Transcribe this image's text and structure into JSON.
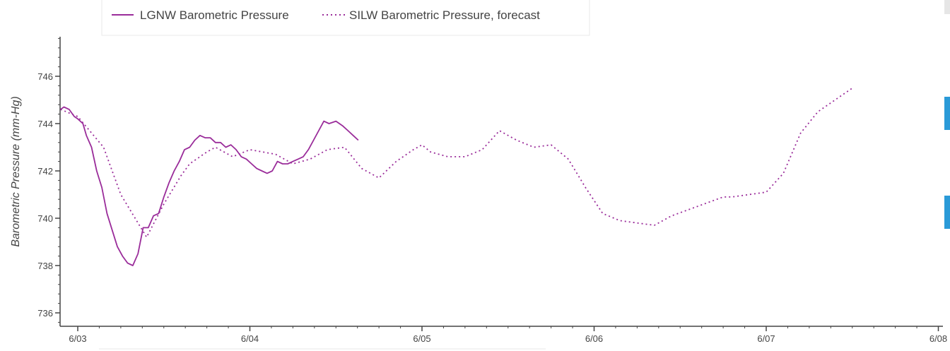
{
  "chart_data": {
    "type": "line",
    "ylabel": "Barometric Pressure (mm-Hg)",
    "ylim": [
      735.6,
      747.8
    ],
    "xlim": [
      -0.1,
      5.02
    ],
    "x_tick_labels": [
      "6/03",
      "6/04",
      "6/05",
      "6/06",
      "6/07",
      "6/08"
    ],
    "x_tick_values": [
      0,
      1,
      2,
      3,
      4,
      5
    ],
    "y_ticks": [
      736,
      738,
      740,
      742,
      744,
      746
    ],
    "legend": {
      "placement": "top-left",
      "orientation": "horizontal"
    },
    "grid": false,
    "series": [
      {
        "name": "LGNW Barometric Pressure",
        "style": "solid",
        "color": "#9a2c9a",
        "x": [
          -0.1,
          -0.08,
          -0.05,
          -0.02,
          0.0,
          0.03,
          0.05,
          0.08,
          0.11,
          0.14,
          0.17,
          0.2,
          0.23,
          0.26,
          0.29,
          0.32,
          0.35,
          0.38,
          0.41,
          0.44,
          0.47,
          0.5,
          0.53,
          0.56,
          0.59,
          0.62,
          0.65,
          0.68,
          0.71,
          0.74,
          0.77,
          0.8,
          0.83,
          0.86,
          0.89,
          0.92,
          0.95,
          0.98,
          1.01,
          1.04,
          1.07,
          1.1,
          1.13,
          1.16,
          1.19,
          1.22,
          1.25,
          1.28,
          1.31,
          1.34,
          1.37,
          1.4,
          1.43,
          1.46,
          1.5,
          1.54,
          1.57,
          1.6,
          1.63,
          1.66,
          1.69,
          1.72,
          1.75,
          1.78,
          1.81,
          1.84,
          1.87,
          1.9,
          1.93,
          1.96,
          1.98,
          2.02,
          2.06,
          2.1,
          2.15,
          2.2,
          2.25
        ],
        "y": [
          744.6,
          744.7,
          744.6,
          744.3,
          744.2,
          744.0,
          743.5,
          743.0,
          742.0,
          741.3,
          740.2,
          739.5,
          738.8,
          738.4,
          738.1,
          738.0,
          738.5,
          739.6,
          739.6,
          740.1,
          740.2,
          740.9,
          741.5,
          742.0,
          742.4,
          742.9,
          743.0,
          743.3,
          743.5,
          743.4,
          743.4,
          743.2,
          743.2,
          743.0,
          743.1,
          742.9,
          742.6,
          742.5,
          742.3,
          742.1,
          742.0,
          741.9,
          742.0,
          742.4,
          742.3,
          742.3,
          742.4,
          742.5,
          742.6,
          742.9,
          743.3,
          743.7,
          744.1,
          744.0,
          744.1,
          743.9,
          743.7,
          743.5,
          743.3,
          null,
          null,
          null,
          null,
          null,
          null,
          null,
          null,
          null,
          null,
          null,
          null,
          null,
          null,
          null,
          null,
          null,
          null
        ]
      },
      {
        "name": "SILW Barometric Pressure, forecast",
        "style": "dotted",
        "color": "#9a2c9a",
        "x": [
          -0.1,
          0.0,
          0.15,
          0.25,
          0.4,
          0.5,
          0.6,
          0.65,
          0.75,
          0.8,
          0.9,
          1.0,
          1.15,
          1.25,
          1.35,
          1.45,
          1.55,
          1.65,
          1.75,
          1.85,
          1.95,
          2.0,
          2.05,
          2.15,
          2.25,
          2.35,
          2.45,
          2.55,
          2.65,
          2.75,
          2.85,
          2.95,
          3.05,
          3.15,
          3.25,
          3.35,
          3.45,
          3.6,
          3.75,
          3.8,
          3.9,
          4.0,
          4.1,
          4.2,
          4.3,
          4.4,
          4.5,
          4.6,
          4.7,
          4.8,
          4.9,
          5.02
        ],
        "y": [
          744.6,
          744.3,
          743.0,
          741.0,
          739.2,
          740.6,
          741.8,
          742.3,
          742.8,
          743.0,
          742.6,
          742.9,
          742.7,
          742.3,
          742.5,
          742.9,
          743.0,
          742.1,
          741.7,
          742.4,
          742.9,
          743.1,
          742.8,
          742.6,
          742.6,
          742.9,
          743.7,
          743.3,
          743.0,
          743.1,
          742.5,
          741.3,
          740.2,
          739.9,
          739.8,
          739.7,
          740.1,
          740.5,
          740.9,
          740.9,
          741.0,
          741.1,
          741.9,
          743.6,
          744.5,
          745.0,
          745.5,
          null,
          null,
          null,
          null,
          null
        ]
      }
    ]
  },
  "colors": {
    "series": "#9a2c9a",
    "axis": "#444444",
    "legend_border": "#e8e8e8",
    "side_accent": "#2a9ad8"
  }
}
